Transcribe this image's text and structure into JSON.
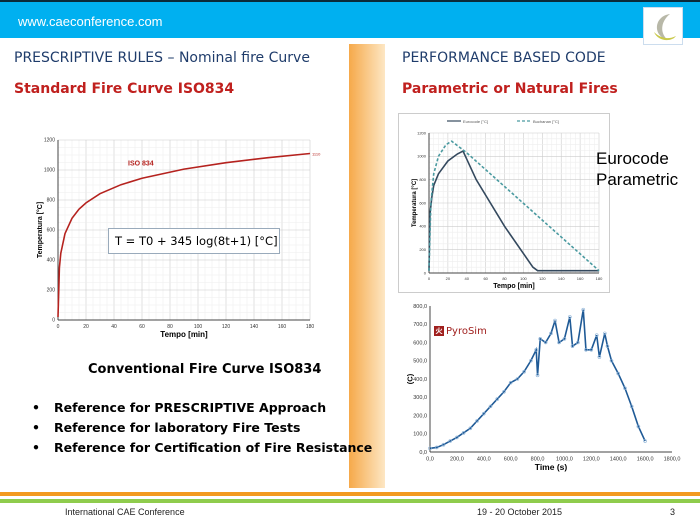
{
  "header": {
    "url": "www.caeconference.com"
  },
  "left": {
    "title": "PRESCRIPTIVE RULES – Nominal fire Curve",
    "subtitle": "Standard Fire Curve ISO834",
    "formula": "T = T0 + 345 log(8t+1)   [°C]",
    "caption": "Conventional Fire Curve ISO834",
    "bullets": [
      "Reference for PRESCRIPTIVE Approach",
      "Reference for laboratory Fire Tests",
      "Reference for Certification of Fire Resistance"
    ]
  },
  "right": {
    "title": "PERFORMANCE BASED CODE",
    "subtitle": "Parametric or Natural Fires",
    "label_line1": "Eurocode",
    "label_line2": "Parametric",
    "pyrosim": "PyroSim"
  },
  "footer": {
    "left": "International CAE Conference",
    "date": "19 - 20 October 2015",
    "page": "3"
  },
  "chart_data": [
    {
      "type": "line",
      "xlabel": "Tempo [min]",
      "ylabel": "Temperatura [°C]",
      "xlim": [
        0,
        180
      ],
      "ylim": [
        0,
        1200
      ],
      "xticks": [
        0,
        20,
        40,
        60,
        80,
        100,
        120,
        140,
        160,
        180
      ],
      "yticks": [
        0,
        200,
        400,
        600,
        800,
        1000,
        1200
      ],
      "grid": true,
      "series": [
        {
          "name": "ISO 834",
          "color": "#b5221e",
          "x": [
            0,
            1,
            2,
            5,
            10,
            15,
            20,
            30,
            45,
            60,
            90,
            120,
            150,
            180
          ],
          "y": [
            20,
            349,
            445,
            576,
            678,
            739,
            781,
            842,
            902,
            945,
            1006,
            1049,
            1082,
            1110
          ]
        }
      ],
      "end_label": "1110"
    },
    {
      "type": "line",
      "xlabel": "Tempo [min]",
      "ylabel": "Temperatura [°C]",
      "xlim": [
        0,
        180
      ],
      "ylim": [
        0,
        1200
      ],
      "xticks": [
        0,
        20,
        40,
        60,
        80,
        100,
        120,
        140,
        160,
        180
      ],
      "yticks": [
        0,
        200,
        400,
        600,
        800,
        1000,
        1200
      ],
      "grid": true,
      "legend": "top",
      "series": [
        {
          "name": "Eurocode [°C]",
          "color": "#34495e",
          "dash": false,
          "x": [
            0,
            1,
            3,
            5,
            10,
            20,
            30,
            36,
            50,
            80,
            110,
            115,
            180
          ],
          "y": [
            20,
            500,
            650,
            750,
            850,
            960,
            1020,
            1045,
            800,
            400,
            50,
            20,
            20
          ]
        },
        {
          "name": "Buchanan [°C]",
          "color": "#4a9aa0",
          "dash": true,
          "x": [
            0,
            2,
            5,
            10,
            18,
            24,
            40,
            180
          ],
          "y": [
            20,
            600,
            850,
            1000,
            1100,
            1130,
            1030,
            20
          ]
        }
      ]
    },
    {
      "type": "line",
      "xlabel": "Time (s)",
      "ylabel": "(C)",
      "xlim": [
        0,
        1800
      ],
      "ylim": [
        0,
        800
      ],
      "xticks": [
        "0,0",
        "200,0",
        "400,0",
        "600,0",
        "800,0",
        "1000,0",
        "1200,0",
        "1400,0",
        "1600,0",
        "1800,0"
      ],
      "yticks": [
        "0,0",
        "100,0",
        "200,0",
        "300,0",
        "400,0",
        "500,0",
        "600,0",
        "700,0",
        "800,0"
      ],
      "grid": false,
      "series": [
        {
          "color": "#1f5a96",
          "x": [
            0,
            50,
            100,
            150,
            200,
            250,
            300,
            350,
            400,
            450,
            500,
            550,
            600,
            650,
            700,
            750,
            790,
            800,
            820,
            860,
            900,
            930,
            960,
            1000,
            1040,
            1060,
            1100,
            1140,
            1160,
            1200,
            1240,
            1260,
            1300,
            1320,
            1350,
            1400,
            1450,
            1500,
            1550,
            1600
          ],
          "y": [
            20,
            25,
            40,
            60,
            80,
            105,
            130,
            170,
            210,
            250,
            290,
            330,
            380,
            400,
            440,
            500,
            560,
            420,
            620,
            600,
            650,
            720,
            600,
            620,
            740,
            580,
            600,
            780,
            560,
            560,
            640,
            520,
            650,
            580,
            500,
            430,
            350,
            250,
            140,
            60
          ]
        }
      ]
    }
  ]
}
